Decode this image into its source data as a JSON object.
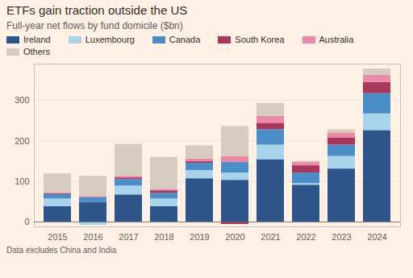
{
  "chart_data": {
    "type": "bar",
    "title": "ETFs gain traction outside the US",
    "subtitle": "Full-year net flows by fund domicile ($bn)",
    "caption": "Data excludes China and India",
    "categories": [
      "2015",
      "2016",
      "2017",
      "2018",
      "2019",
      "2020",
      "2021",
      "2022",
      "2023",
      "2024"
    ],
    "series": [
      {
        "name": "Ireland",
        "color": "#2e5589",
        "values": [
          38,
          48,
          67,
          38,
          107,
          103,
          154,
          91,
          131,
          226
        ]
      },
      {
        "name": "Luxembourg",
        "color": "#a9d3ea",
        "values": [
          19,
          -8,
          22,
          19,
          20,
          18,
          36,
          4,
          31,
          41
        ]
      },
      {
        "name": "Canada",
        "color": "#4a8ec8",
        "values": [
          11,
          12,
          16,
          14,
          18,
          26,
          38,
          26,
          28,
          50
        ]
      },
      {
        "name": "South Korea",
        "color": "#a8375e",
        "values": [
          2,
          1,
          4,
          6,
          4,
          -6,
          16,
          18,
          18,
          28
        ]
      },
      {
        "name": "Australia",
        "color": "#e98aa8",
        "values": [
          2,
          2,
          4,
          4,
          7,
          15,
          17,
          8,
          12,
          17
        ]
      },
      {
        "name": "Others",
        "color": "#d8ccc1",
        "values": [
          47,
          50,
          79,
          79,
          32,
          74,
          32,
          3,
          8,
          16
        ]
      }
    ],
    "ylim": [
      -12,
      390
    ],
    "yticks": [
      0,
      100,
      200,
      300
    ],
    "grid": true,
    "stacked": true,
    "legend": "top"
  }
}
